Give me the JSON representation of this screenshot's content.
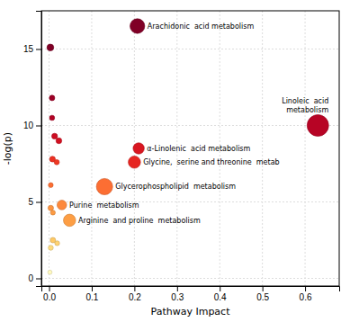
{
  "chart_data": {
    "type": "scatter",
    "xlabel": "Pathway Impact",
    "ylabel": "-log(p)",
    "x": [
      0.207,
      0.63,
      0.21,
      0.2,
      0.13,
      0.03,
      0.048,
      0.003,
      0.007,
      0.007,
      0.013,
      0.023,
      0.008,
      0.018,
      0.004,
      0.004,
      0.009,
      0.009,
      0.019,
      0.004,
      0.002
    ],
    "values": [
      16.5,
      10.0,
      8.5,
      7.6,
      6.0,
      4.8,
      3.8,
      15.1,
      11.8,
      10.5,
      9.3,
      9.0,
      7.8,
      7.6,
      6.1,
      4.6,
      4.3,
      2.5,
      2.3,
      2.0,
      0.4
    ],
    "sizes": [
      130,
      280,
      75,
      90,
      160,
      55,
      90,
      28,
      18,
      16,
      20,
      20,
      20,
      16,
      14,
      18,
      14,
      18,
      14,
      15,
      11
    ],
    "color_values": [
      1.0,
      0.88,
      0.78,
      0.73,
      0.56,
      0.5,
      0.44,
      1.0,
      0.94,
      0.89,
      0.82,
      0.8,
      0.7,
      0.68,
      0.56,
      0.47,
      0.45,
      0.3,
      0.26,
      0.22,
      0.04
    ],
    "labels": [
      "Arachidonic  acid metabolism",
      "Linoleic  acid\nmetabolism",
      "α-Linolenic  acid metabolism",
      "Glycine,  serine and threonine  metab",
      "Glycerophospholipid  metabolism",
      "Purine  metabolism",
      "Arginine  and proline  metabolism",
      null,
      null,
      null,
      null,
      null,
      null,
      null,
      null,
      null,
      null,
      null,
      null,
      null,
      null
    ],
    "xlim": [
      -0.018,
      0.68
    ],
    "ylim": [
      -0.5,
      17.5
    ],
    "xticks": [
      {
        "value": 0.0,
        "label": "0.0"
      },
      0.1,
      0.2,
      0.3,
      0.4,
      0.5,
      0.6
    ],
    "yticks": [
      0,
      5,
      10,
      15
    ],
    "grid": true
  }
}
